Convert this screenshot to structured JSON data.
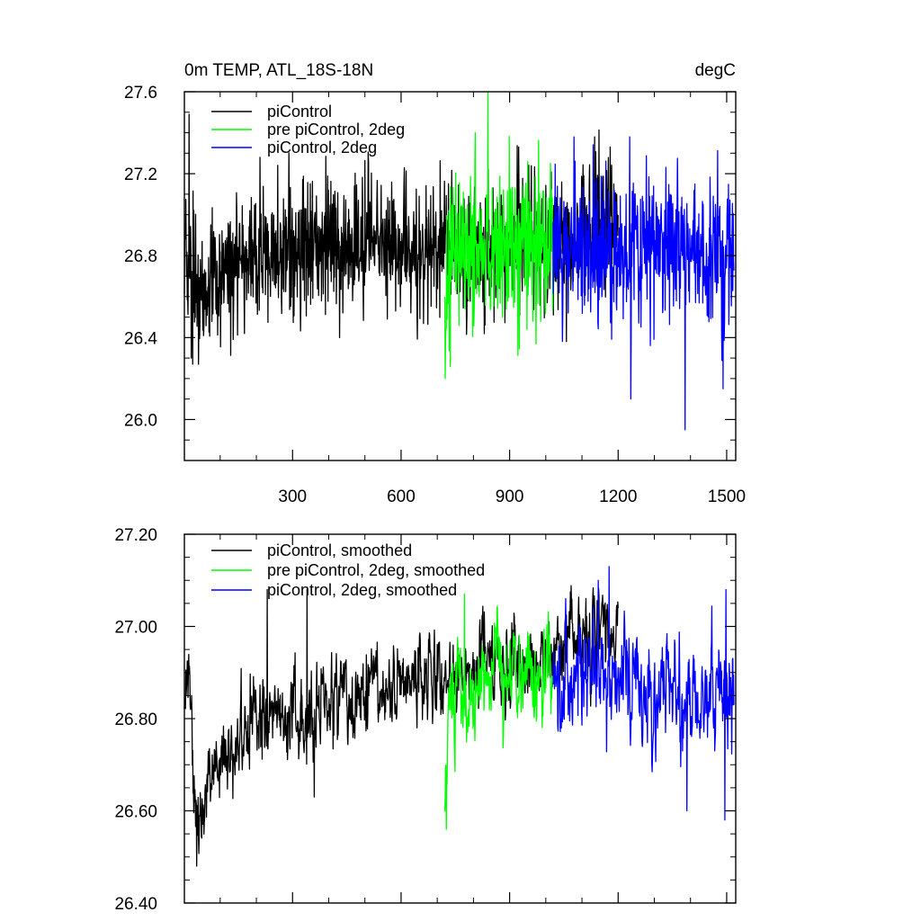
{
  "chart_data": [
    {
      "type": "line",
      "title": "0m TEMP, ATL_18S-18N",
      "units": "degC",
      "xlim": [
        1,
        1525
      ],
      "ylim": [
        25.8,
        27.6
      ],
      "xticks": [
        300,
        600,
        900,
        1200,
        1500
      ],
      "xticks_minor": [
        100,
        200,
        400,
        500,
        700,
        800,
        1000,
        1100,
        1300,
        1400
      ],
      "yticks": [
        26.0,
        26.4,
        26.8,
        27.2,
        27.6
      ],
      "yticks_minor": [
        25.8,
        25.9,
        26.1,
        26.2,
        26.3,
        26.5,
        26.6,
        26.7,
        26.9,
        27.0,
        27.1,
        27.3,
        27.4,
        27.5
      ],
      "ytick_labels": [
        "26.0",
        "26.4",
        "26.8",
        "27.2",
        "27.6"
      ],
      "grid": false,
      "legend_position": "top-left",
      "series": [
        {
          "name": "piControl",
          "color": "#000000",
          "x_start": 1,
          "x_end": 1200,
          "anchors": [
            [
              1,
              26.75
            ],
            [
              50,
              26.62
            ],
            [
              150,
              26.75
            ],
            [
              300,
              26.84
            ],
            [
              500,
              26.86
            ],
            [
              720,
              26.84
            ],
            [
              1000,
              26.86
            ],
            [
              1200,
              26.92
            ]
          ],
          "noise_sd": 0.16,
          "spikes": [
            [
              14,
              27.49
            ],
            [
              20,
              26.3
            ],
            [
              40,
              26.27
            ],
            [
              210,
              27.28
            ],
            [
              430,
              26.4
            ],
            [
              925,
              27.33
            ],
            [
              1135,
              27.38
            ]
          ]
        },
        {
          "name": "pre piControl, 2deg",
          "color": "#00ff00",
          "x_start": 720,
          "x_end": 1020,
          "anchors": [
            [
              720,
              26.55
            ],
            [
              740,
              26.8
            ],
            [
              1020,
              26.86
            ]
          ],
          "noise_sd": 0.18,
          "spikes": [
            [
              722,
              26.2
            ],
            [
              840,
              27.6
            ],
            [
              805,
              27.4
            ],
            [
              880,
              26.5
            ]
          ]
        },
        {
          "name": "piControl, 2deg",
          "color": "#0000ff",
          "x_start": 1020,
          "x_end": 1520,
          "anchors": [
            [
              1020,
              26.85
            ],
            [
              1520,
              26.82
            ]
          ],
          "noise_sd": 0.18,
          "spikes": [
            [
              1235,
              26.1
            ],
            [
              1385,
              25.95
            ],
            [
              1490,
              26.15
            ],
            [
              1232,
              27.38
            ],
            [
              1078,
              27.38
            ]
          ]
        }
      ]
    },
    {
      "type": "line",
      "xlim": [
        1,
        1525
      ],
      "ylim": [
        26.4,
        27.2
      ],
      "xticks": [
        300,
        600,
        900,
        1200,
        1500
      ],
      "xticks_minor": [
        100,
        200,
        400,
        500,
        700,
        800,
        1000,
        1100,
        1300,
        1400
      ],
      "yticks": [
        26.4,
        26.6,
        26.8,
        27.0,
        27.2
      ],
      "yticks_minor": [
        26.45,
        26.5,
        26.55,
        26.65,
        26.7,
        26.75,
        26.85,
        26.9,
        26.95,
        27.05,
        27.1,
        27.15
      ],
      "ytick_labels": [
        "26.40",
        "26.60",
        "26.80",
        "27.00",
        "27.20"
      ],
      "grid": false,
      "legend_position": "top-left",
      "series": [
        {
          "name": "piControl, smoothed",
          "color": "#000000",
          "x_start": 1,
          "x_end": 1200,
          "anchors": [
            [
              1,
              26.84
            ],
            [
              15,
              26.86
            ],
            [
              30,
              26.6
            ],
            [
              50,
              26.62
            ],
            [
              100,
              26.7
            ],
            [
              200,
              26.78
            ],
            [
              350,
              26.82
            ],
            [
              500,
              26.87
            ],
            [
              720,
              26.9
            ],
            [
              1000,
              26.92
            ],
            [
              1120,
              27.0
            ],
            [
              1200,
              26.98
            ]
          ],
          "noise_sd": 0.055,
          "spikes": [
            [
              35,
              26.48
            ],
            [
              230,
              27.08
            ],
            [
              340,
              27.08
            ],
            [
              360,
              26.63
            ]
          ]
        },
        {
          "name": "pre piControl, 2deg, smoothed",
          "color": "#00ff00",
          "x_start": 720,
          "x_end": 1020,
          "anchors": [
            [
              720,
              26.6
            ],
            [
              735,
              26.8
            ],
            [
              760,
              26.9
            ],
            [
              1020,
              26.88
            ]
          ],
          "noise_sd": 0.06,
          "spikes": [
            [
              725,
              26.56
            ],
            [
              775,
              27.07
            ]
          ]
        },
        {
          "name": "piControl, 2deg, smoothed",
          "color": "#0000ff",
          "x_start": 1020,
          "x_end": 1520,
          "anchors": [
            [
              1020,
              26.88
            ],
            [
              1200,
              26.9
            ],
            [
              1300,
              26.84
            ],
            [
              1520,
              26.84
            ]
          ],
          "noise_sd": 0.07,
          "spikes": [
            [
              1175,
              27.13
            ],
            [
              1145,
              27.1
            ],
            [
              1390,
              26.6
            ],
            [
              1495,
              26.58
            ],
            [
              1498,
              27.08
            ]
          ]
        }
      ]
    }
  ]
}
